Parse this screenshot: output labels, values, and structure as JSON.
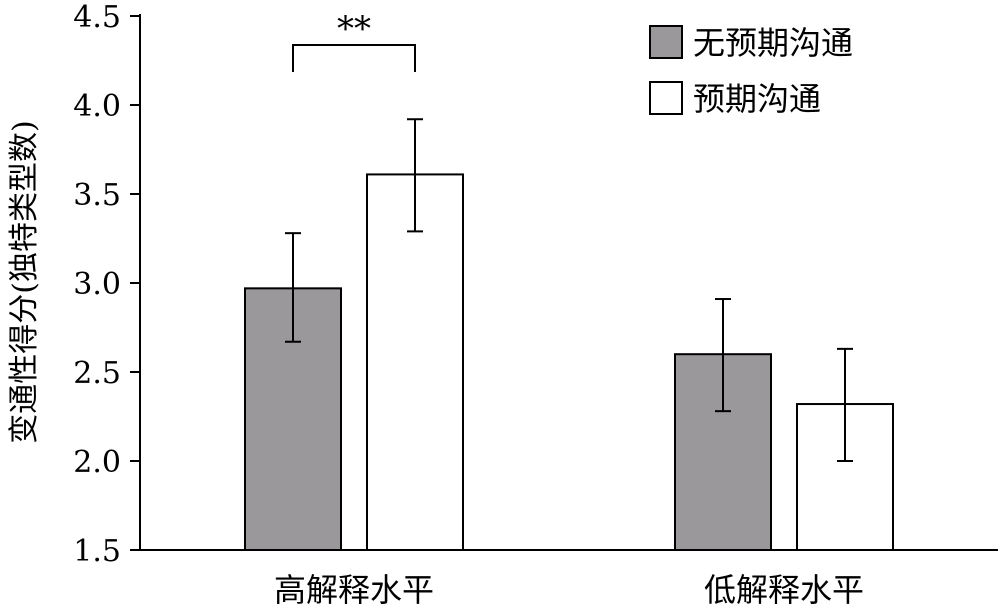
{
  "chart_data": {
    "type": "bar",
    "categories": [
      "高解释水平",
      "低解释水平"
    ],
    "ylabel": "变通性得分(独特类型数)",
    "ylim": [
      1.5,
      4.5
    ],
    "yticks": [
      "1.5",
      "2.0",
      "2.5",
      "3.0",
      "3.5",
      "4.0",
      "4.5"
    ],
    "grid": false,
    "legend_position": "top-right",
    "series": [
      {
        "name": "无预期沟通",
        "color": "#9b989c",
        "values": [
          2.97,
          2.6
        ],
        "error_low": [
          2.67,
          2.28
        ],
        "error_high": [
          3.28,
          2.91
        ]
      },
      {
        "name": "预期沟通",
        "color": "#ffffff",
        "values": [
          3.61,
          2.32
        ],
        "error_low": [
          3.29,
          2.0
        ],
        "error_high": [
          3.92,
          2.63
        ]
      }
    ],
    "annotations": [
      {
        "text": "**",
        "category_index": 0,
        "between_series": [
          0,
          1
        ]
      }
    ]
  }
}
